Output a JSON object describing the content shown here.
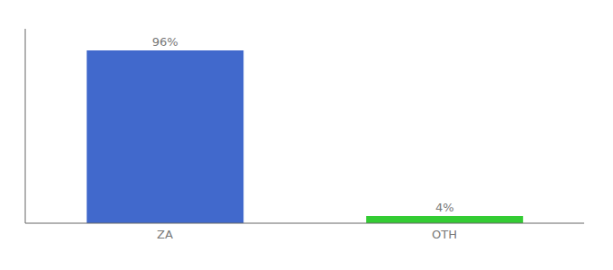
{
  "chart_data": {
    "type": "bar",
    "categories": [
      "ZA",
      "OTH"
    ],
    "values": [
      96,
      4
    ],
    "value_labels": [
      "96%",
      "4%"
    ],
    "colors": [
      "#4169cc",
      "#33cc33"
    ],
    "ylim": [
      0,
      108
    ],
    "data_labels": true,
    "tick_labels": "x",
    "grid": false
  }
}
